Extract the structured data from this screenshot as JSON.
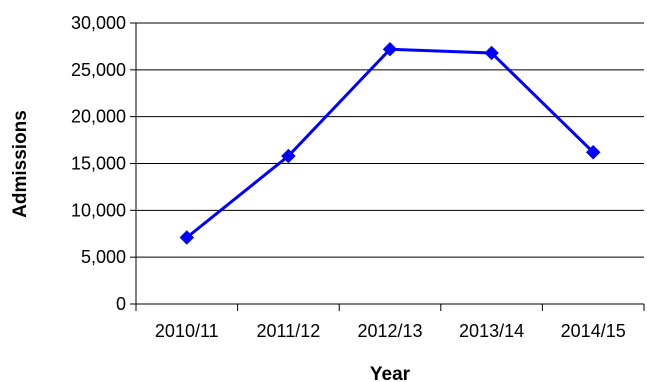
{
  "chart_data": {
    "type": "line",
    "title": "",
    "xlabel": "Year",
    "ylabel": "Admissions",
    "categories": [
      "2010/11",
      "2011/12",
      "2012/13",
      "2013/14",
      "2014/15"
    ],
    "series": [
      {
        "values": [
          7100,
          15800,
          27200,
          26800,
          16200
        ],
        "color": "#0000FF",
        "marker": "diamond"
      }
    ],
    "ylim": [
      0,
      30000
    ],
    "yticks": [
      0,
      5000,
      10000,
      15000,
      20000,
      25000,
      30000
    ],
    "ytick_labels": [
      "0",
      "5,000",
      "10,000",
      "15,000",
      "20,000",
      "25,000",
      "30,000"
    ],
    "grid": true,
    "legend": "none"
  }
}
